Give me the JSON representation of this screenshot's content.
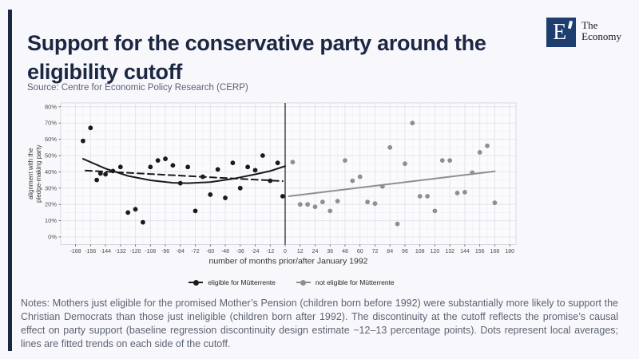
{
  "slide": {
    "title": "Support for the conservative party around the eligibility cutoff",
    "source": "Source: Centre for Economic Policy Research (CERP)",
    "notes": "Notes: Mothers just eligible for the promised Mother’s Pension (children born before 1992) were substantially more likely to support the Christian Democrats than those just ineligible (children born after 1992). The discontinuity at the cutoff reflects the promise’s causal effect on party support (baseline regression discontinuity design estimate ~12–13 percentage points). Dots represent local averages; lines are fitted trends on each side of the cutoff.",
    "accent_color": "#1c2743",
    "background": "#f8f8fc"
  },
  "logo": {
    "letter": "E",
    "name_line1": "The",
    "name_line2": "Economy",
    "box_color": "#1d3e6f"
  },
  "chart_data": {
    "type": "scatter",
    "title": "",
    "xlabel": "number of months prior/after January 1992",
    "ylabel_line1": "alignment with the",
    "ylabel_line2": "pledge-making party",
    "xlim": [
      -180,
      186
    ],
    "ylim": [
      0,
      80
    ],
    "x_ticks": [
      -168,
      -156,
      -144,
      -132,
      -120,
      -108,
      -96,
      -84,
      -72,
      -60,
      -48,
      -36,
      -24,
      -12,
      0,
      12,
      24,
      36,
      48,
      60,
      72,
      84,
      96,
      108,
      120,
      132,
      144,
      156,
      168,
      180
    ],
    "y_ticks": [
      0,
      10,
      20,
      30,
      40,
      50,
      60,
      70,
      80
    ],
    "y_tick_suffix": "%",
    "grid": "on",
    "legend_position": "bottom",
    "cutoff_x": 0,
    "cutoff_color": "#2a2a2a",
    "series": [
      {
        "name": "eligible for Mütterrente",
        "color": "#1a1a1a",
        "points": [
          [
            -162,
            59
          ],
          [
            -156,
            67
          ],
          [
            -151,
            35
          ],
          [
            -148,
            39
          ],
          [
            -144,
            38.5
          ],
          [
            -138,
            40.5
          ],
          [
            -132,
            43
          ],
          [
            -126,
            15
          ],
          [
            -120,
            17
          ],
          [
            -114,
            9
          ],
          [
            -108,
            43
          ],
          [
            -102,
            47
          ],
          [
            -96,
            48
          ],
          [
            -90,
            44
          ],
          [
            -84,
            33
          ],
          [
            -78,
            43
          ],
          [
            -72,
            16
          ],
          [
            -66,
            37
          ],
          [
            -60,
            26
          ],
          [
            -54,
            41.5
          ],
          [
            -48,
            24
          ],
          [
            -42,
            45.5
          ],
          [
            -36,
            30
          ],
          [
            -30,
            43
          ],
          [
            -24,
            41
          ],
          [
            -18,
            50
          ],
          [
            -12,
            34.5
          ],
          [
            -6,
            45.5
          ],
          [
            -2,
            25
          ]
        ]
      },
      {
        "name": "not eligible for Mütterrente",
        "color": "#8f8f8f",
        "points": [
          [
            6,
            46
          ],
          [
            12,
            20
          ],
          [
            18,
            20
          ],
          [
            24,
            18.5
          ],
          [
            30,
            21.5
          ],
          [
            36,
            16
          ],
          [
            42,
            22
          ],
          [
            48,
            47
          ],
          [
            54,
            34.5
          ],
          [
            60,
            37
          ],
          [
            66,
            21.5
          ],
          [
            72,
            20.5
          ],
          [
            78,
            31
          ],
          [
            84,
            55
          ],
          [
            90,
            8
          ],
          [
            96,
            45
          ],
          [
            102,
            70
          ],
          [
            108,
            25
          ],
          [
            114,
            25
          ],
          [
            120,
            16
          ],
          [
            126,
            47
          ],
          [
            132,
            47
          ],
          [
            138,
            27
          ],
          [
            144,
            27.5
          ],
          [
            150,
            39.5
          ],
          [
            156,
            52
          ],
          [
            162,
            56
          ],
          [
            168,
            21
          ]
        ]
      }
    ],
    "fits": [
      {
        "name": "eligible quadratic fit",
        "style": "solid",
        "color": "#1a1a1a",
        "points": [
          [
            -162,
            48
          ],
          [
            -144,
            42
          ],
          [
            -126,
            37.5
          ],
          [
            -108,
            34.8
          ],
          [
            -90,
            33.3
          ],
          [
            -78,
            33
          ],
          [
            -60,
            33.7
          ],
          [
            -42,
            35.7
          ],
          [
            -24,
            38.5
          ],
          [
            -12,
            40.5
          ],
          [
            0,
            43.5
          ]
        ]
      },
      {
        "name": "eligible linear fit",
        "style": "dashed",
        "color": "#1a1a1a",
        "points": [
          [
            -160,
            40.8
          ],
          [
            -2,
            34.3
          ]
        ]
      },
      {
        "name": "not eligible linear fit",
        "style": "solid",
        "color": "#8f8f8f",
        "points": [
          [
            3,
            25
          ],
          [
            168,
            40.3
          ]
        ]
      }
    ]
  }
}
